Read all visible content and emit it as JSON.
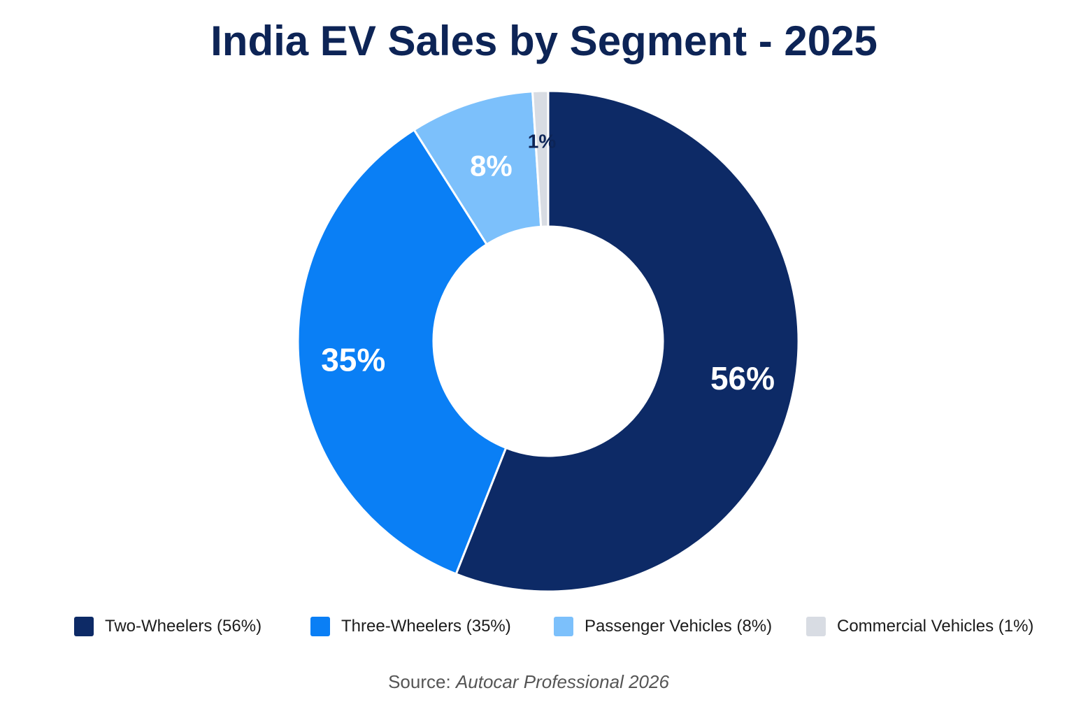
{
  "chart_data": {
    "type": "pie",
    "title": "India EV Sales by Segment - 2025",
    "categories": [
      "Two-Wheelers",
      "Three-Wheelers",
      "Passenger Vehicles",
      "Commercial Vehicles"
    ],
    "values": [
      56,
      35,
      8,
      1
    ],
    "slice_labels": [
      "56%",
      "35%",
      "8%",
      "1%"
    ],
    "legend_labels": [
      "Two-Wheelers (56%)",
      "Three-Wheelers (35%)",
      "Passenger Vehicles (8%)",
      "Commercial Vehicles (1%)"
    ],
    "colors": [
      "#0d2a66",
      "#0a7ff5",
      "#7cc0fb",
      "#d8dce3"
    ],
    "label_colors": [
      "#ffffff",
      "#ffffff",
      "#ffffff",
      "#0d2456"
    ],
    "legend_placement": "bottom",
    "start_angle": "12 o'clock",
    "direction": "clockwise"
  },
  "source": {
    "prefix": "Source:",
    "name": "Autocar Professional 2026"
  }
}
